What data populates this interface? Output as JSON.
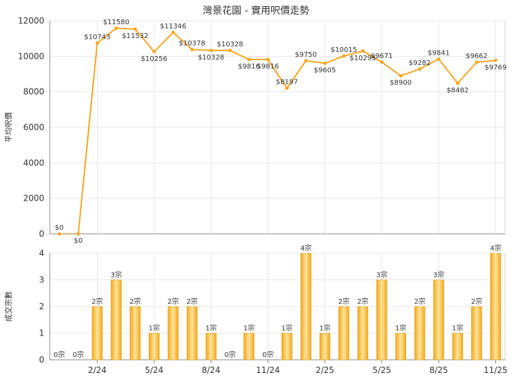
{
  "title": "灣景花園 - 實用呎價走勢",
  "colors": {
    "line": "#f5a623",
    "bar_light": "#fde39a",
    "bar_dark": "#f3a81b",
    "grid": "#e6e6e6",
    "axis": "#888888"
  },
  "chart_data": [
    {
      "type": "line",
      "ylabel": "平均呎價",
      "ylim": [
        0,
        12000
      ],
      "yticks": [
        0,
        2000,
        4000,
        6000,
        8000,
        10000,
        12000
      ],
      "grid": true,
      "series": [
        {
          "values": [
            0,
            0,
            10743,
            11580,
            11532,
            10256,
            11346,
            10378,
            10328,
            10328,
            9816,
            9816,
            8197,
            9750,
            9605,
            10015,
            10295,
            9671,
            8900,
            9282,
            9841,
            8482,
            9662,
            9769
          ]
        }
      ],
      "labels": [
        "$0",
        "$0",
        "$10743",
        "$11580",
        "$11532",
        "$10256",
        "$11346",
        "$10378",
        "$10328",
        "$10328",
        "$9816",
        "$9816",
        "$8197",
        "$9750",
        "$9605",
        "$10015",
        "$10295",
        "$9671",
        "$8900",
        "$9282",
        "$9841",
        "$8482",
        "$9662",
        "$9769"
      ]
    },
    {
      "type": "bar",
      "ylabel": "成交宗數",
      "ylim": [
        0,
        4
      ],
      "yticks": [
        0,
        1,
        2,
        3,
        4
      ],
      "grid": true,
      "categories": [
        "",
        "",
        "2/24",
        "",
        "",
        "5/24",
        "",
        "",
        "8/24",
        "",
        "",
        "11/24",
        "",
        "",
        "2/25",
        "",
        "",
        "5/25",
        "",
        "",
        "8/25",
        "",
        "",
        "11/25"
      ],
      "values": [
        0,
        0,
        2,
        3,
        2,
        1,
        2,
        2,
        1,
        0,
        1,
        0,
        1,
        4,
        1,
        2,
        2,
        3,
        1,
        2,
        3,
        1,
        2,
        4
      ],
      "labels": [
        "0宗",
        "0宗",
        "2宗",
        "3宗",
        "2宗",
        "1宗",
        "2宗",
        "2宗",
        "1宗",
        "0宗",
        "1宗",
        "0宗",
        "1宗",
        "4宗",
        "1宗",
        "2宗",
        "2宗",
        "3宗",
        "1宗",
        "2宗",
        "3宗",
        "1宗",
        "2宗",
        "4宗"
      ]
    }
  ]
}
